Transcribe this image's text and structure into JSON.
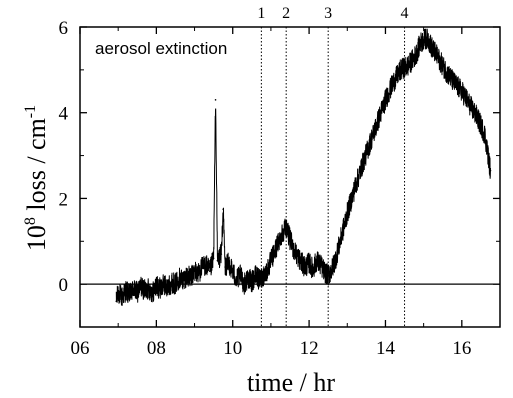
{
  "chart_data": {
    "type": "line",
    "title": "",
    "annotation": "aerosol extinction",
    "xlabel": "time / hr",
    "ylabel_base": "10",
    "ylabel_exp": "8",
    "ylabel_main": " loss / cm",
    "ylabel_unit_exp": "-1",
    "xlim": [
      6,
      17
    ],
    "ylim": [
      -1,
      6
    ],
    "x_ticks": [
      {
        "value": 6,
        "label": "06"
      },
      {
        "value": 8,
        "label": "08"
      },
      {
        "value": 10,
        "label": "10"
      },
      {
        "value": 12,
        "label": "12"
      },
      {
        "value": 14,
        "label": "14"
      },
      {
        "value": 16,
        "label": "16"
      }
    ],
    "y_ticks": [
      {
        "value": 0,
        "label": "0"
      },
      {
        "value": 2,
        "label": "2"
      },
      {
        "value": 4,
        "label": "4"
      },
      {
        "value": 6,
        "label": "6"
      }
    ],
    "reference_lines": [
      {
        "label": "1",
        "x": 10.75
      },
      {
        "label": "2",
        "x": 11.4
      },
      {
        "label": "3",
        "x": 12.5
      },
      {
        "label": "4",
        "x": 14.5
      }
    ],
    "zero_line": 0,
    "series": [
      {
        "color": "#000000",
        "x": [
          6.95,
          7.0,
          7.1,
          7.2,
          7.3,
          7.4,
          7.5,
          7.6,
          7.7,
          7.8,
          7.9,
          8.0,
          8.1,
          8.2,
          8.3,
          8.4,
          8.5,
          8.6,
          8.7,
          8.8,
          8.9,
          9.0,
          9.1,
          9.2,
          9.3,
          9.4,
          9.5,
          9.55,
          9.6,
          9.7,
          9.75,
          9.8,
          9.9,
          10.0,
          10.1,
          10.2,
          10.3,
          10.4,
          10.5,
          10.6,
          10.7,
          10.8,
          10.9,
          11.0,
          11.1,
          11.2,
          11.3,
          11.4,
          11.5,
          11.6,
          11.7,
          11.8,
          11.9,
          12.0,
          12.1,
          12.2,
          12.3,
          12.4,
          12.5,
          12.6,
          12.7,
          12.8,
          12.9,
          13.0,
          13.2,
          13.4,
          13.6,
          13.8,
          14.0,
          14.2,
          14.4,
          14.6,
          14.8,
          14.9,
          15.0,
          15.1,
          15.2,
          15.4,
          15.6,
          15.8,
          16.0,
          16.2,
          16.4,
          16.6,
          16.75
        ],
        "y": [
          -0.4,
          -0.2,
          -0.3,
          -0.15,
          -0.25,
          -0.1,
          -0.2,
          -0.05,
          -0.15,
          -0.1,
          -0.2,
          -0.05,
          -0.1,
          0.0,
          -0.1,
          0.05,
          0.0,
          0.15,
          0.1,
          0.2,
          0.15,
          0.3,
          0.25,
          0.4,
          0.45,
          0.3,
          0.6,
          4.3,
          0.55,
          0.7,
          1.75,
          0.4,
          0.5,
          0.3,
          0.1,
          0.2,
          0.0,
          0.15,
          0.05,
          0.2,
          0.1,
          0.2,
          0.3,
          0.55,
          0.75,
          1.0,
          1.2,
          1.35,
          1.05,
          0.8,
          0.65,
          0.5,
          0.4,
          0.5,
          0.35,
          0.55,
          0.45,
          0.3,
          0.2,
          0.35,
          0.6,
          0.95,
          1.3,
          1.65,
          2.25,
          2.8,
          3.3,
          3.8,
          4.3,
          4.7,
          5.0,
          5.1,
          5.35,
          5.6,
          5.7,
          5.75,
          5.55,
          5.25,
          4.95,
          4.7,
          4.5,
          4.2,
          3.9,
          3.5,
          2.65
        ]
      }
    ]
  }
}
